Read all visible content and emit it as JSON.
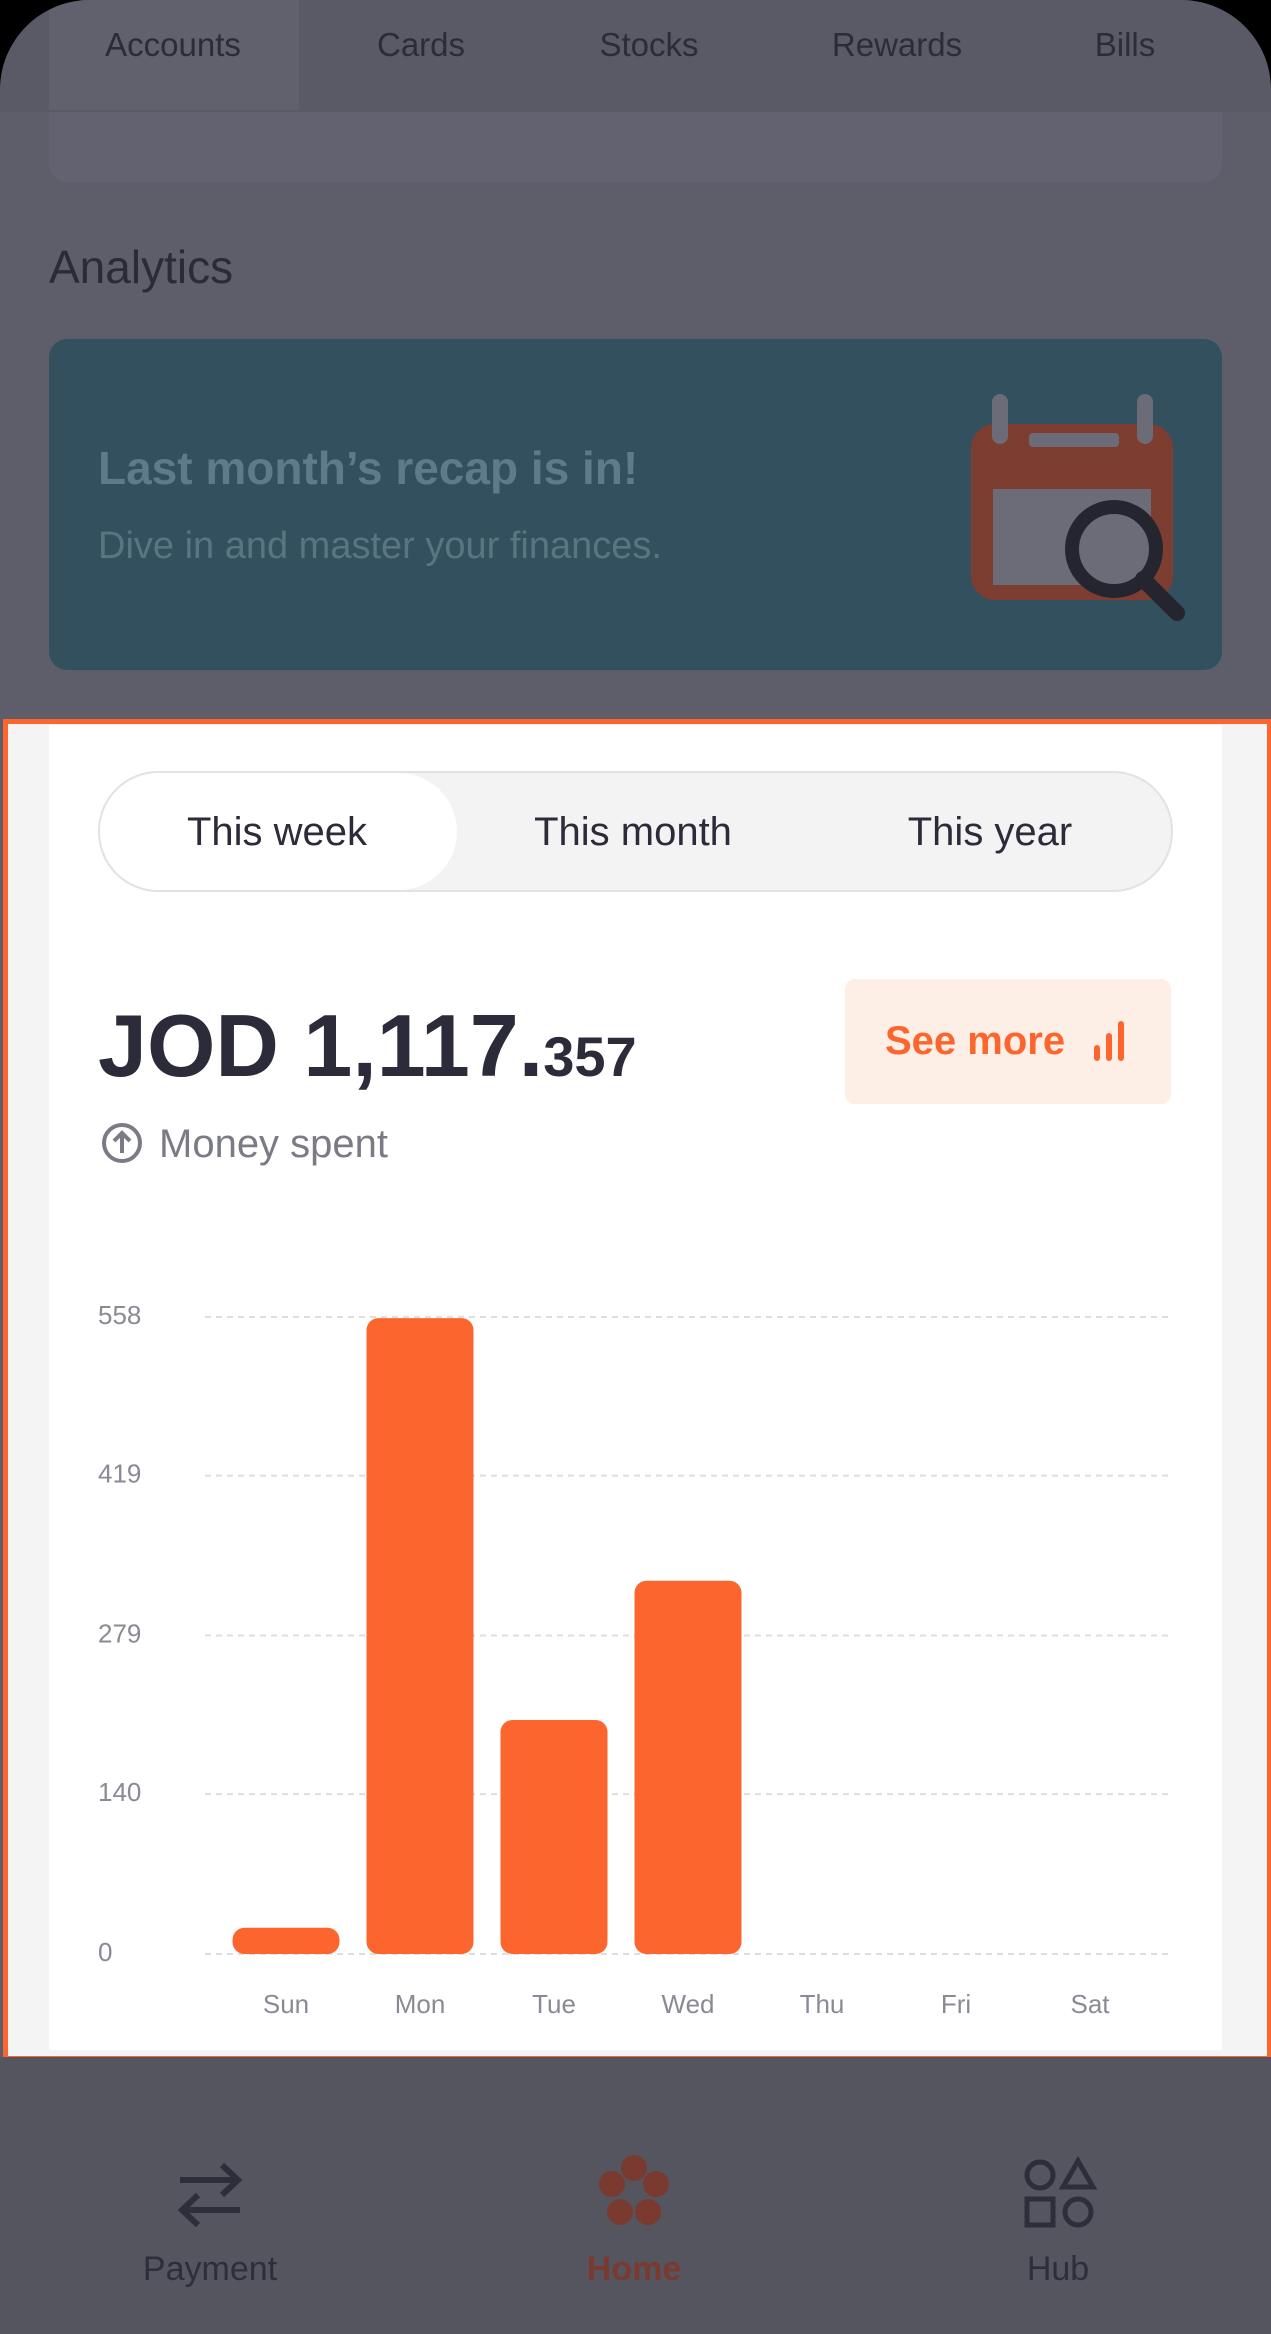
{
  "top_tabs": [
    "Accounts",
    "Cards",
    "Stocks",
    "Rewards",
    "Bills"
  ],
  "section_title": "Analytics",
  "banner": {
    "title": "Last month’s recap is in!",
    "subtitle": "Dive in and master your finances."
  },
  "period_tabs": [
    "This week",
    "This month",
    "This year"
  ],
  "amount": {
    "main": "JOD 1,117.",
    "fraction": "357"
  },
  "see_more": "See more",
  "amount_caption": "Money spent",
  "chart_data": {
    "type": "bar",
    "categories": [
      "Sun",
      "Mon",
      "Tue",
      "Wed",
      "Thu",
      "Fri",
      "Sat"
    ],
    "values": [
      23,
      557,
      205,
      327,
      0,
      0,
      0
    ],
    "color": "#fc652d",
    "ylim": [
      0,
      558
    ],
    "yticks": [
      0,
      140,
      279,
      419,
      558
    ],
    "grid": true
  },
  "bottom_nav": [
    "Payment",
    "Home",
    "Hub"
  ]
}
